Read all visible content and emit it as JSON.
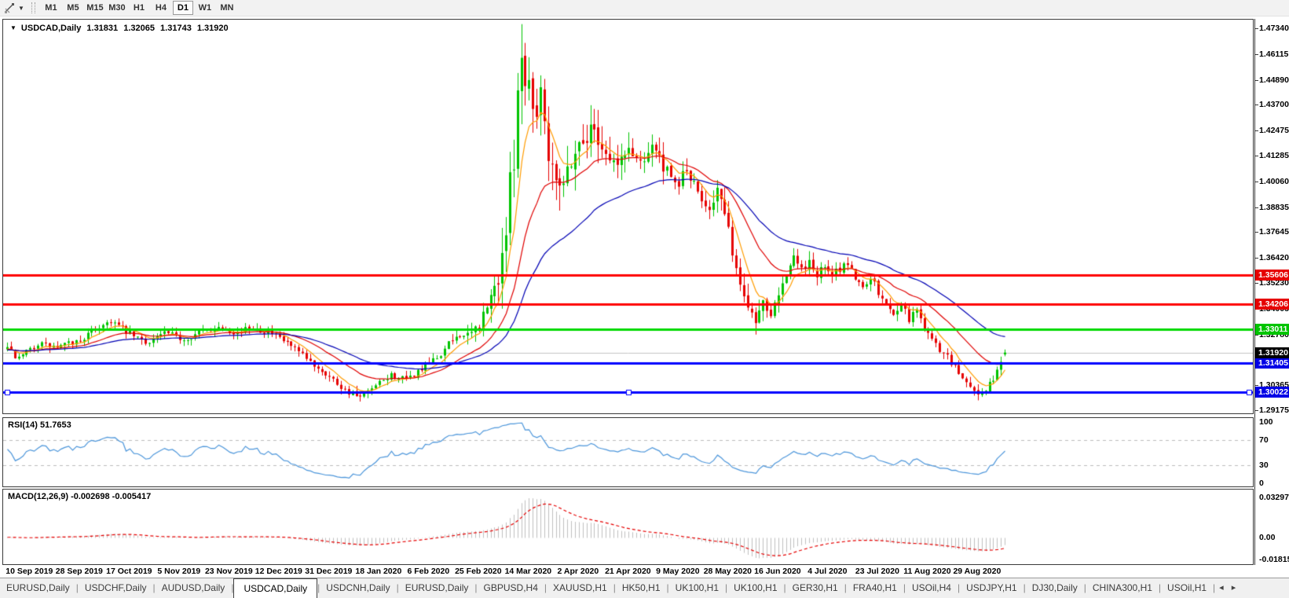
{
  "toolbar": {
    "timeframes": [
      "M1",
      "M5",
      "M15",
      "M30",
      "H1",
      "H4",
      "D1",
      "W1",
      "MN"
    ],
    "active_timeframe": "D1"
  },
  "icons": {
    "tool_caret": "▼",
    "title_caret": "▼",
    "tab_scroll_left": "◂",
    "tab_scroll_right": "▸"
  },
  "chart": {
    "title": "USDCAD,Daily",
    "ohlc": {
      "open": "1.31831",
      "high": "1.32065",
      "low": "1.31743",
      "close": "1.31920"
    }
  },
  "chart_data": {
    "type": "candlestick",
    "symbol": "USDCAD",
    "timeframe": "Daily",
    "bars": 261,
    "bar_step": 4.885,
    "warmup": 60,
    "seed": 7,
    "colors": {
      "up": "#00c400",
      "down": "#e60000",
      "background": "#ffffff",
      "current_price_line": "#c4c4c4",
      "rsi_line": "#4c96db",
      "macd_hist": "#c0c0c0",
      "macd_signal": "#e60000"
    },
    "price_scale": {
      "max": 1.4775,
      "min": 1.2903
    },
    "price_axis_ticks": [
      "1.47340",
      "1.46115",
      "1.44890",
      "1.43700",
      "1.42475",
      "1.41285",
      "1.40060",
      "1.38835",
      "1.37645",
      "1.36420",
      "1.35230",
      "1.34005",
      "1.32780",
      "1.31555",
      "1.30365",
      "1.29175"
    ],
    "time_axis": {
      "labels": [
        "10 Sep 2019",
        "28 Sep 2019",
        "17 Oct 2019",
        "5 Nov 2019",
        "23 Nov 2019",
        "12 Dec 2019",
        "31 Dec 2019",
        "18 Jan 2020",
        "6 Feb 2020",
        "25 Feb 2020",
        "14 Mar 2020",
        "2 Apr 2020",
        "21 Apr 2020",
        "9 May 2020",
        "28 May 2020",
        "16 Jun 2020",
        "4 Jul 2020",
        "23 Jul 2020",
        "11 Aug 2020",
        "29 Aug 2020"
      ],
      "first_bar": 6,
      "bars_per_tick": 13
    },
    "close_anchors": [
      [
        0,
        1.3205
      ],
      [
        3,
        1.316
      ],
      [
        8,
        1.3235
      ],
      [
        13,
        1.3215
      ],
      [
        19,
        1.325
      ],
      [
        24,
        1.3315
      ],
      [
        27,
        1.3345
      ],
      [
        31,
        1.329
      ],
      [
        36,
        1.324
      ],
      [
        41,
        1.3285
      ],
      [
        46,
        1.3255
      ],
      [
        51,
        1.3295
      ],
      [
        56,
        1.3315
      ],
      [
        60,
        1.3285
      ],
      [
        64,
        1.3315
      ],
      [
        69,
        1.328
      ],
      [
        73,
        1.3235
      ],
      [
        78,
        1.316
      ],
      [
        83,
        1.3095
      ],
      [
        88,
        1.3015
      ],
      [
        92,
        1.2975
      ],
      [
        96,
        1.303
      ],
      [
        100,
        1.3085
      ],
      [
        104,
        1.306
      ],
      [
        108,
        1.3115
      ],
      [
        112,
        1.3165
      ],
      [
        115,
        1.323
      ],
      [
        118,
        1.3285
      ],
      [
        120,
        1.326
      ],
      [
        122,
        1.33
      ],
      [
        124,
        1.336
      ],
      [
        126,
        1.344
      ],
      [
        128,
        1.356
      ],
      [
        130,
        1.378
      ],
      [
        132,
        1.415
      ],
      [
        133,
        1.448
      ],
      [
        134,
        1.462
      ],
      [
        135,
        1.445
      ],
      [
        136,
        1.456
      ],
      [
        137,
        1.434
      ],
      [
        139,
        1.444
      ],
      [
        141,
        1.416
      ],
      [
        143,
        1.406
      ],
      [
        145,
        1.4
      ],
      [
        147,
        1.412
      ],
      [
        150,
        1.421
      ],
      [
        153,
        1.426
      ],
      [
        156,
        1.414
      ],
      [
        159,
        1.408
      ],
      [
        162,
        1.416
      ],
      [
        165,
        1.41
      ],
      [
        168,
        1.419
      ],
      [
        171,
        1.407
      ],
      [
        174,
        1.398
      ],
      [
        177,
        1.406
      ],
      [
        180,
        1.394
      ],
      [
        183,
        1.389
      ],
      [
        185,
        1.397
      ],
      [
        187,
        1.384
      ],
      [
        189,
        1.368
      ],
      [
        191,
        1.35
      ],
      [
        193,
        1.343
      ],
      [
        195,
        1.335
      ],
      [
        197,
        1.344
      ],
      [
        199,
        1.339
      ],
      [
        201,
        1.349
      ],
      [
        203,
        1.357
      ],
      [
        205,
        1.364
      ],
      [
        207,
        1.358
      ],
      [
        209,
        1.363
      ],
      [
        211,
        1.356
      ],
      [
        213,
        1.36
      ],
      [
        215,
        1.355
      ],
      [
        217,
        1.359
      ],
      [
        219,
        1.362
      ],
      [
        221,
        1.355
      ],
      [
        223,
        1.35
      ],
      [
        225,
        1.356
      ],
      [
        227,
        1.347
      ],
      [
        229,
        1.342
      ],
      [
        231,
        1.338
      ],
      [
        233,
        1.343
      ],
      [
        235,
        1.335
      ],
      [
        237,
        1.34
      ],
      [
        239,
        1.331
      ],
      [
        241,
        1.325
      ],
      [
        243,
        1.321
      ],
      [
        245,
        1.317
      ],
      [
        247,
        1.312
      ],
      [
        249,
        1.307
      ],
      [
        251,
        1.303
      ],
      [
        253,
        1.3
      ],
      [
        255,
        1.301
      ],
      [
        257,
        1.307
      ],
      [
        259,
        1.314
      ],
      [
        260,
        1.3183
      ]
    ],
    "volatility_anchors": [
      [
        0,
        0.0055
      ],
      [
        108,
        0.0055
      ],
      [
        116,
        0.007
      ],
      [
        122,
        0.011
      ],
      [
        126,
        0.02
      ],
      [
        130,
        0.03
      ],
      [
        134,
        0.034
      ],
      [
        140,
        0.028
      ],
      [
        146,
        0.022
      ],
      [
        152,
        0.02
      ],
      [
        160,
        0.016
      ],
      [
        172,
        0.013
      ],
      [
        186,
        0.012
      ],
      [
        196,
        0.011
      ],
      [
        205,
        0.009
      ],
      [
        225,
        0.0075
      ],
      [
        240,
        0.0065
      ],
      [
        260,
        0.006
      ]
    ],
    "last_candle": {
      "open": 1.31831,
      "high": 1.32065,
      "low": 1.31743,
      "close": 1.3192
    },
    "moving_averages": [
      {
        "name": "fast",
        "period": 7,
        "color": "#ff9c00"
      },
      {
        "name": "medium",
        "period": 21,
        "color": "#e00000"
      },
      {
        "name": "slow",
        "period": 45,
        "color": "#0000b4"
      }
    ],
    "hlines": [
      {
        "price": 1.35606,
        "label": "1.35606",
        "color": "#ff0000",
        "label_bg": "#e60000",
        "selected": false
      },
      {
        "price": 1.34206,
        "label": "1.34206",
        "color": "#ff0000",
        "label_bg": "#e60000",
        "selected": false
      },
      {
        "price": 1.33011,
        "label": "1.33011",
        "color": "#00d900",
        "label_bg": "#00c400",
        "selected": false
      },
      {
        "price": 1.31405,
        "label": "1.31405",
        "color": "#0000ff",
        "label_bg": "#0000e6",
        "selected": false
      },
      {
        "price": 1.30022,
        "label": "1.30022",
        "color": "#0000ff",
        "label_bg": "#0000e6",
        "selected": true
      }
    ],
    "current_price": {
      "value": 1.3192,
      "label": "1.31920",
      "label_bg": "#000000"
    },
    "rsi": {
      "label": "RSI(14) 51.7653",
      "period": 14,
      "value": 51.7653,
      "levels": [
        70,
        30
      ],
      "axis_labels": [
        "100",
        "70",
        "30",
        "0"
      ],
      "range": [
        0,
        100
      ]
    },
    "macd": {
      "label": "MACD(12,26,9) -0.002698 -0.005417",
      "fast": 12,
      "slow": 26,
      "signal": 9,
      "value_main": -0.002698,
      "value_signal": -0.005417,
      "axis_labels": [
        "0.032972",
        "0.00",
        "-0.018154"
      ]
    }
  },
  "tabs": {
    "items": [
      "EURUSD,Daily",
      "USDCHF,Daily",
      "AUDUSD,Daily",
      "USDCAD,Daily",
      "USDCNH,Daily",
      "EURUSD,Daily",
      "GBPUSD,H4",
      "XAUUSD,H1",
      "HK50,H1",
      "UK100,H1",
      "UK100,H1",
      "GER30,H1",
      "FRA40,H1",
      "USOil,H4",
      "USDJPY,H1",
      "DJ30,Daily",
      "CHINA300,H1",
      "USOil,H1"
    ],
    "active_index": 3
  }
}
